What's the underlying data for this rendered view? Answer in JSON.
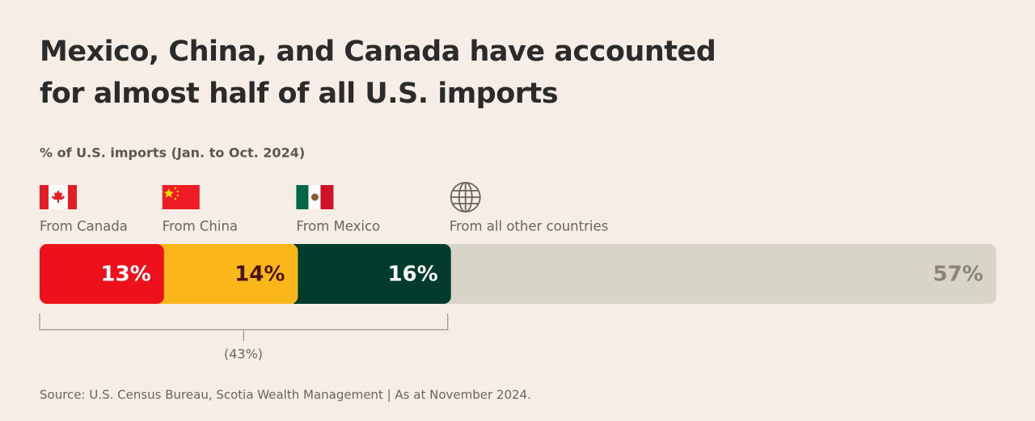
{
  "chart_data": {
    "type": "bar",
    "orientation": "horizontal",
    "stacked": true,
    "title": "Mexico, China, and Canada have accounted for almost half of all U.S. imports",
    "subtitle": "% of U.S. imports (Jan. to Oct. 2024)",
    "xlim": [
      0,
      100
    ],
    "series": [
      {
        "name": "From Canada",
        "color": "#ec111a",
        "label_color": "#ffffff",
        "values": [
          13
        ],
        "value_labels": [
          "13%"
        ]
      },
      {
        "name": "From China",
        "color": "#fbb61a",
        "label_color": "#4a1408",
        "values": [
          14
        ],
        "value_labels": [
          "14%"
        ]
      },
      {
        "name": "From Mexico",
        "color": "#003b2b",
        "label_color": "#ffffff",
        "values": [
          16
        ],
        "value_labels": [
          "16%"
        ]
      },
      {
        "name": "From all other countries",
        "color": "#d9d4c8",
        "label_color": "#8a857a",
        "values": [
          57
        ],
        "value_labels": [
          "57%"
        ]
      }
    ],
    "annotation": "(43%)",
    "source": "Source: U.S. Census Bureau, Scotia Wealth Management | As at November 2024."
  }
}
